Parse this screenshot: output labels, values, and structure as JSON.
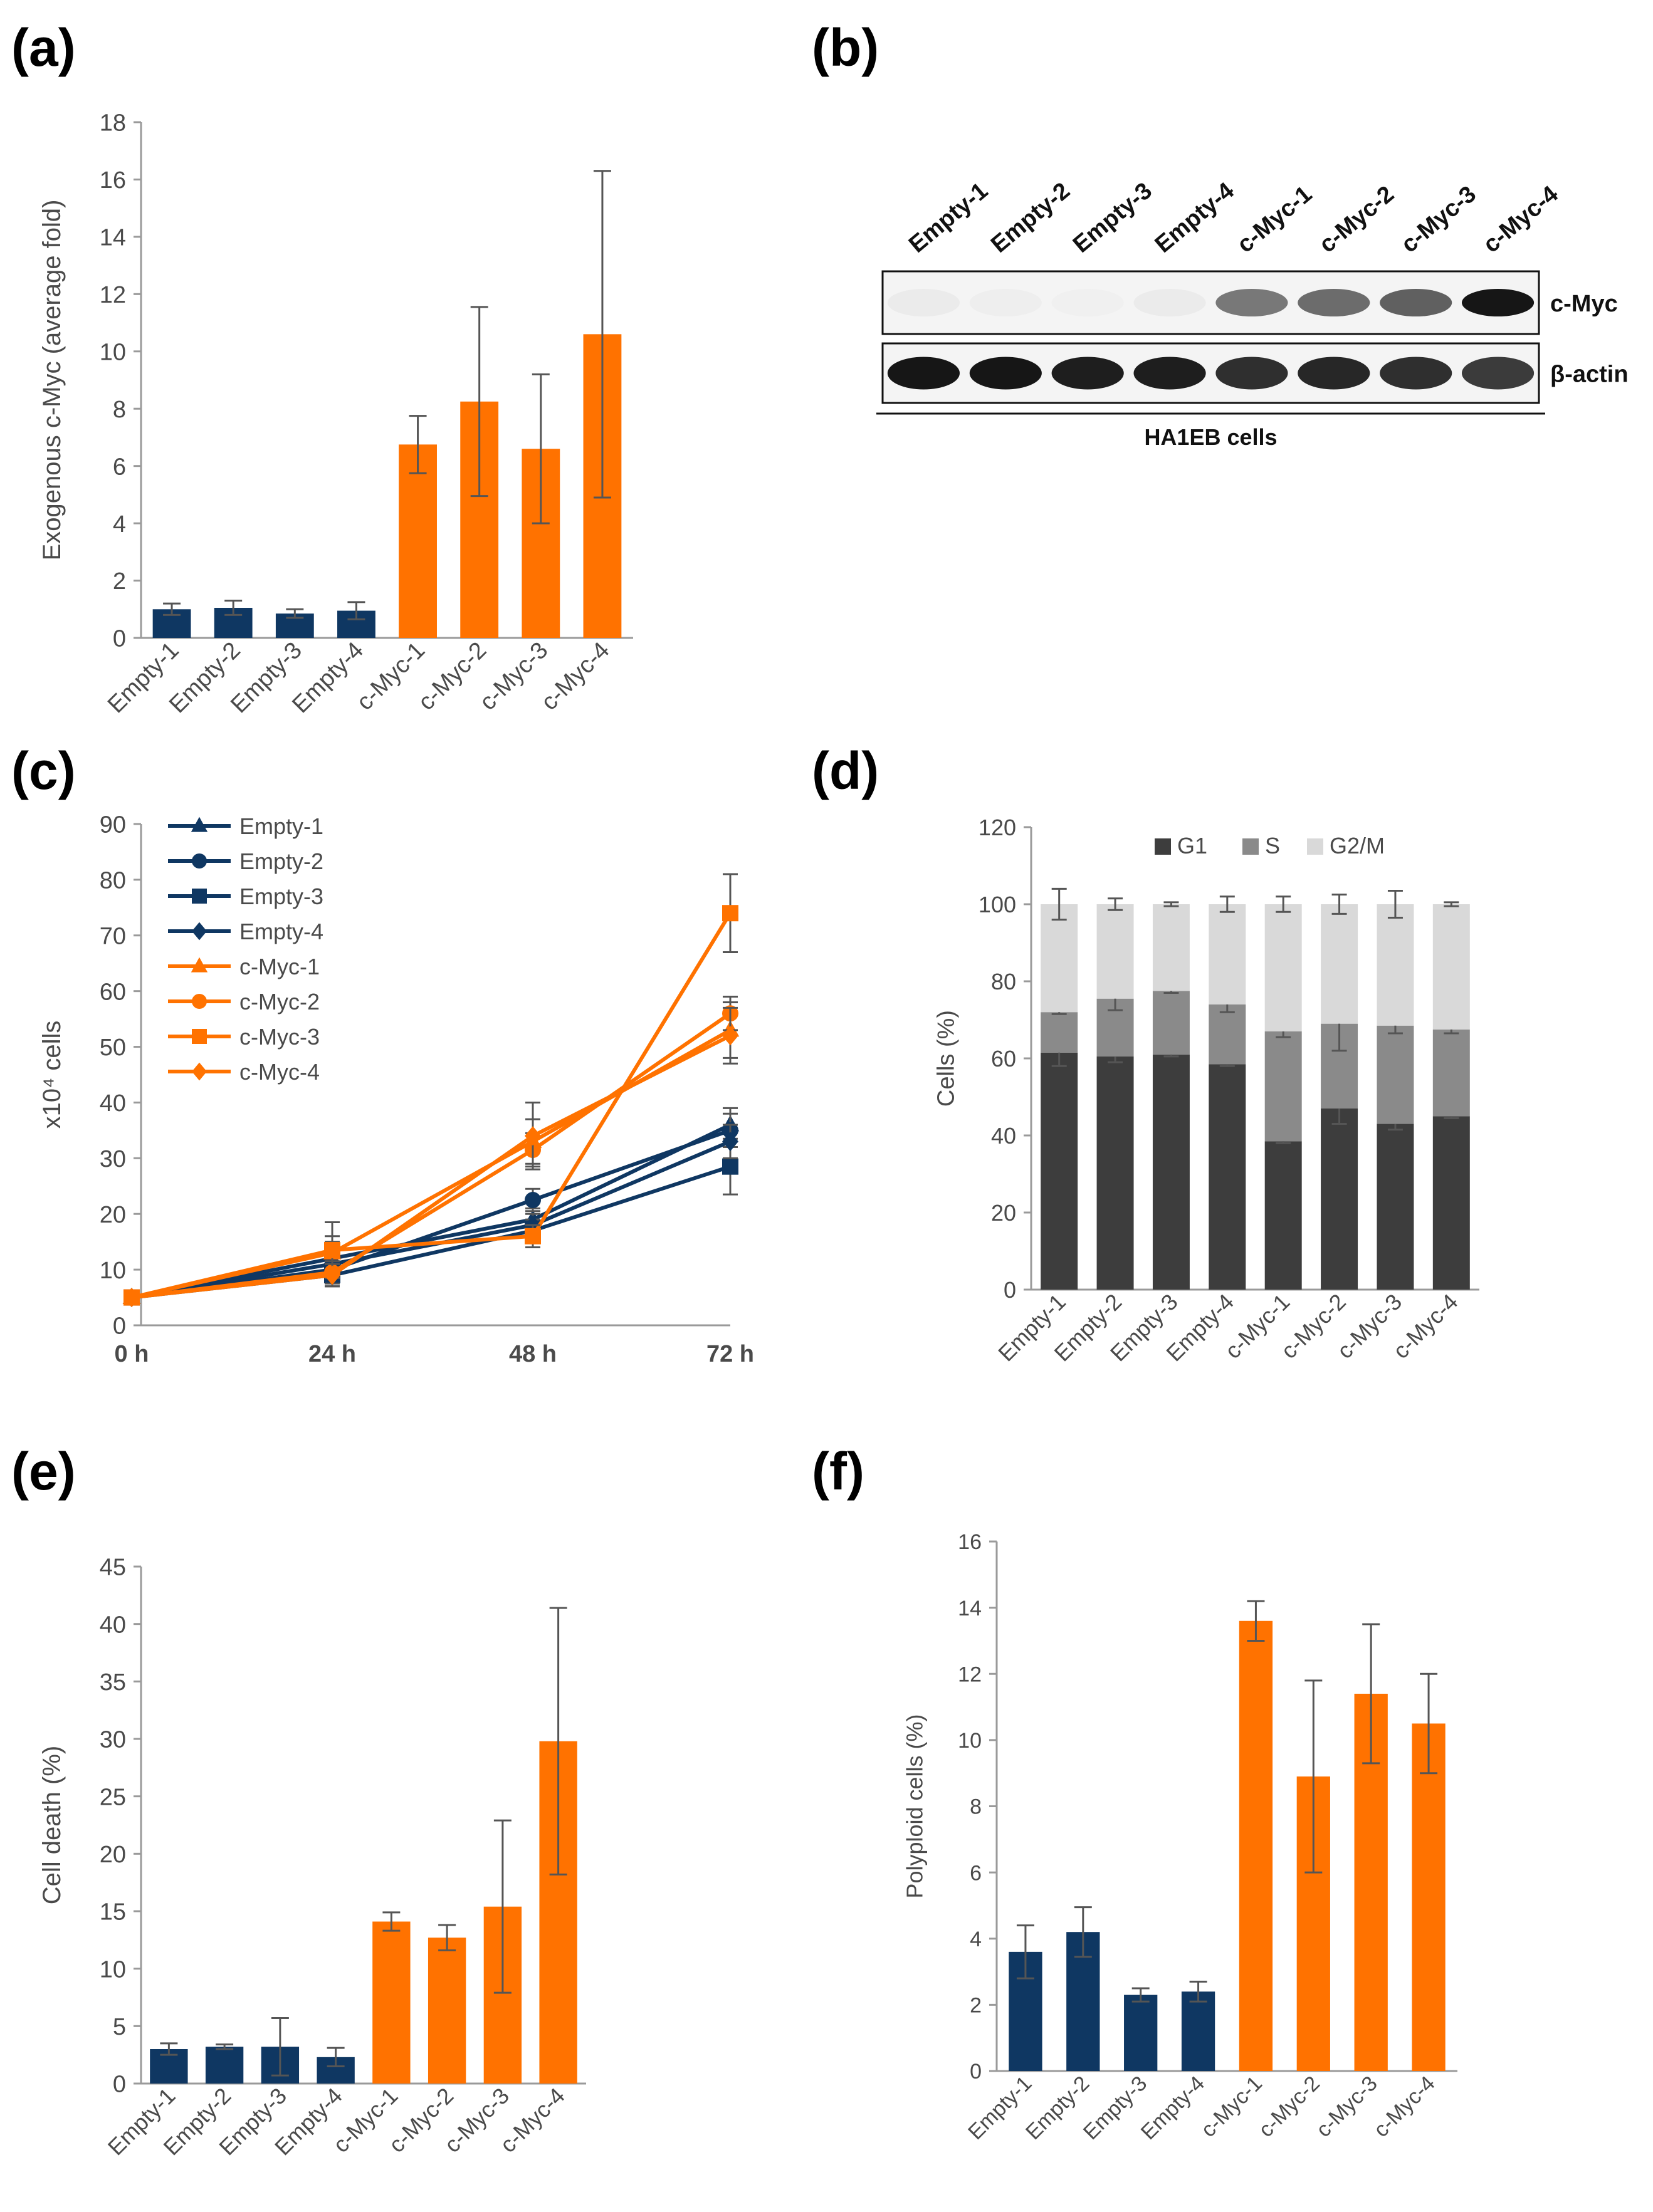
{
  "panels": [
    "(a)",
    "(b)",
    "(c)",
    "(d)",
    "(e)",
    "(f)"
  ],
  "colors": {
    "empty": "#0f3762",
    "cmyc": "#ff7200",
    "g1": "#3d3d3d",
    "s": "#8a8a8a",
    "g2m": "#d9d9d9",
    "axis": "#9a9a9a",
    "err": "#555555"
  },
  "blot": {
    "lanes": [
      "Empty-1",
      "Empty-2",
      "Empty-3",
      "Empty-4",
      "c-Myc-1",
      "c-Myc-2",
      "c-Myc-3",
      "c-Myc-4"
    ],
    "rows": [
      "c-Myc",
      "β-actin"
    ],
    "caption": "HA1EB cells",
    "cmyc_intensity": [
      0.08,
      0.07,
      0.06,
      0.08,
      0.55,
      0.6,
      0.65,
      0.95
    ],
    "actin_intensity": [
      0.95,
      0.95,
      0.92,
      0.92,
      0.85,
      0.88,
      0.85,
      0.8
    ]
  },
  "chart_data": [
    {
      "panel": "(a)",
      "type": "bar",
      "categories": [
        "Empty-1",
        "Empty-2",
        "Empty-3",
        "Empty-4",
        "c-Myc-1",
        "c-Myc-2",
        "c-Myc-3",
        "c-Myc-4"
      ],
      "values": [
        1.0,
        1.05,
        0.85,
        0.95,
        6.75,
        8.25,
        6.6,
        10.6
      ],
      "errors": [
        0.2,
        0.25,
        0.15,
        0.3,
        1.0,
        3.3,
        2.6,
        5.7
      ],
      "ylabel": "Exogenous c-Myc (average fold)",
      "xlabel": "",
      "ylim": [
        0,
        18
      ],
      "yticks": [
        "0",
        "2",
        "4",
        "6",
        "8",
        "10",
        "12",
        "14",
        "16",
        "18"
      ]
    },
    {
      "panel": "(c)",
      "type": "line",
      "x": [
        "0 h",
        "24 h",
        "48 h",
        "72 h"
      ],
      "ylabel": "x10⁴ cells",
      "xlabel": "",
      "ylim": [
        0,
        90
      ],
      "yticks": [
        "0",
        "10",
        "20",
        "30",
        "40",
        "50",
        "60",
        "70",
        "80",
        "90"
      ],
      "series": [
        {
          "name": "Empty-1",
          "group": "empty",
          "marker": "triangle",
          "values": [
            5,
            12,
            19,
            36
          ],
          "errors": [
            0,
            3,
            2,
            3
          ]
        },
        {
          "name": "Empty-2",
          "group": "empty",
          "marker": "circle",
          "values": [
            5,
            10,
            22.5,
            35
          ],
          "errors": [
            0,
            3,
            2,
            3
          ]
        },
        {
          "name": "Empty-3",
          "group": "empty",
          "marker": "square",
          "values": [
            5,
            9,
            17,
            28.5
          ],
          "errors": [
            0,
            2,
            2,
            5
          ]
        },
        {
          "name": "Empty-4",
          "group": "empty",
          "marker": "diamond",
          "values": [
            5,
            11,
            18,
            33
          ],
          "errors": [
            0,
            2,
            2,
            3
          ]
        },
        {
          "name": "c-Myc-1",
          "group": "cmyc",
          "marker": "triangle",
          "values": [
            5,
            13,
            33,
            53
          ],
          "errors": [
            0,
            3,
            4,
            5
          ]
        },
        {
          "name": "c-Myc-2",
          "group": "cmyc",
          "marker": "circle",
          "values": [
            5,
            9.5,
            31.5,
            56
          ],
          "errors": [
            0,
            2,
            3,
            3
          ]
        },
        {
          "name": "c-Myc-3",
          "group": "cmyc",
          "marker": "square",
          "values": [
            5,
            13.5,
            16,
            74
          ],
          "errors": [
            0,
            5,
            2,
            7
          ]
        },
        {
          "name": "c-Myc-4",
          "group": "cmyc",
          "marker": "diamond",
          "values": [
            5,
            9,
            34,
            52
          ],
          "errors": [
            0,
            2,
            6,
            5
          ]
        }
      ]
    },
    {
      "panel": "(d)",
      "type": "bar",
      "stacked": true,
      "categories": [
        "Empty-1",
        "Empty-2",
        "Empty-3",
        "Empty-4",
        "c-Myc-1",
        "c-Myc-2",
        "c-Myc-3",
        "c-Myc-4"
      ],
      "ylabel": "Cells (%)",
      "xlabel": "",
      "ylim": [
        0,
        120
      ],
      "yticks": [
        "0",
        "20",
        "40",
        "60",
        "80",
        "100",
        "120"
      ],
      "legend": [
        "G1",
        "S",
        "G2/M"
      ],
      "series": [
        {
          "name": "G1",
          "values": [
            61.5,
            60.5,
            61,
            58.5,
            38.5,
            47,
            43,
            45
          ],
          "errors": [
            3.5,
            1.5,
            0.5,
            0.5,
            0.5,
            4,
            1.5,
            0.5
          ]
        },
        {
          "name": "S",
          "values": [
            10.5,
            15,
            16.5,
            15.5,
            28.5,
            22,
            25.5,
            22.5
          ],
          "errors": [
            0.5,
            3,
            0.5,
            2,
            1.5,
            7,
            2,
            1
          ]
        },
        {
          "name": "G2/M",
          "values": [
            28,
            24.5,
            22.5,
            26,
            33,
            31,
            31.5,
            32.5
          ],
          "errors": [
            4,
            1.5,
            0.5,
            2,
            2,
            2.5,
            3.5,
            0.5
          ]
        }
      ]
    },
    {
      "panel": "(e)",
      "type": "bar",
      "categories": [
        "Empty-1",
        "Empty-2",
        "Empty-3",
        "Empty-4",
        "c-Myc-1",
        "c-Myc-2",
        "c-Myc-3",
        "c-Myc-4"
      ],
      "values": [
        3.0,
        3.2,
        3.2,
        2.3,
        14.1,
        12.7,
        15.4,
        29.8
      ],
      "errors": [
        0.5,
        0.2,
        2.5,
        0.8,
        0.8,
        1.1,
        7.5,
        11.6
      ],
      "ylabel": "Cell death (%)",
      "xlabel": "",
      "ylim": [
        0,
        45
      ],
      "yticks": [
        "0",
        "5",
        "10",
        "15",
        "20",
        "25",
        "30",
        "35",
        "40",
        "45"
      ]
    },
    {
      "panel": "(f)",
      "type": "bar",
      "categories": [
        "Empty-1",
        "Empty-2",
        "Empty-3",
        "Empty-4",
        "c-Myc-1",
        "c-Myc-2",
        "c-Myc-3",
        "c-Myc-4"
      ],
      "values": [
        3.6,
        4.2,
        2.3,
        2.4,
        13.6,
        8.9,
        11.4,
        10.5
      ],
      "errors": [
        0.8,
        0.75,
        0.2,
        0.3,
        0.6,
        2.9,
        2.1,
        1.5
      ],
      "ylabel": "Polyploid cells (%)",
      "xlabel": "",
      "ylim": [
        0,
        16
      ],
      "yticks": [
        "0",
        "2",
        "4",
        "6",
        "8",
        "10",
        "12",
        "14",
        "16"
      ]
    }
  ]
}
